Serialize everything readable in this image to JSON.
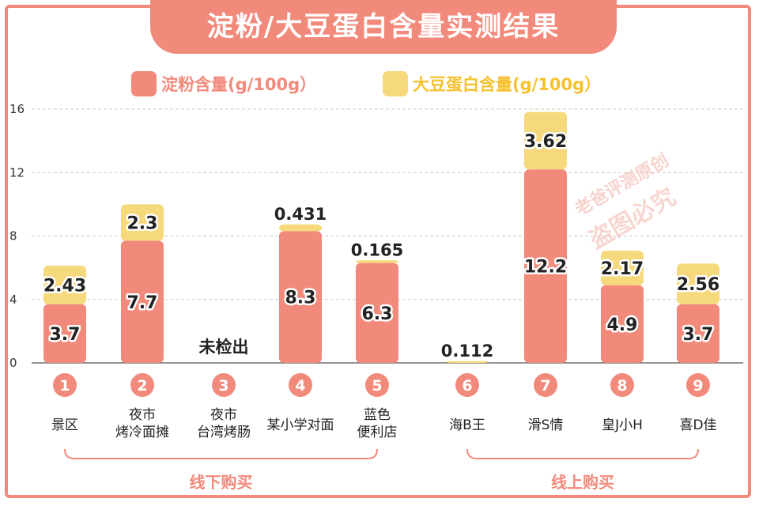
{
  "title": "淀粉/大豆蛋白含量实测结果",
  "colors": {
    "starch": "#f28a7c",
    "protein": "#f6d97c",
    "accent": "#f28a7c",
    "grid": "#cccccc"
  },
  "legend": [
    {
      "name": "淀粉含量(g/100g）",
      "color": "#f28a7c",
      "text_color": "#f28a7c"
    },
    {
      "name": "大豆蛋白含量(g/100g）",
      "color": "#f6d97c",
      "text_color": "#f5c12e"
    }
  ],
  "groups": [
    {
      "label": "线下购买",
      "range": [
        1,
        5
      ]
    },
    {
      "label": "线上购买",
      "range": [
        6,
        9
      ]
    }
  ],
  "watermark": [
    "老爸评测原创",
    "盗图必究"
  ],
  "chart_data": {
    "type": "bar",
    "stacked": true,
    "title": "淀粉/大豆蛋白含量实测结果",
    "ylim": [
      0,
      16
    ],
    "yticks": [
      0,
      4,
      8,
      12,
      16
    ],
    "grid": true,
    "legend_position": "top",
    "categories": [
      {
        "num": "1",
        "lines": [
          "景区"
        ]
      },
      {
        "num": "2",
        "lines": [
          "夜市",
          "烤冷面摊"
        ]
      },
      {
        "num": "3",
        "lines": [
          "夜市",
          "台湾烤肠"
        ]
      },
      {
        "num": "4",
        "lines": [
          "某小学对面"
        ]
      },
      {
        "num": "5",
        "lines": [
          "蓝色",
          "便利店"
        ]
      },
      {
        "num": "6",
        "lines": [
          "海B王"
        ]
      },
      {
        "num": "7",
        "lines": [
          "滑S情"
        ]
      },
      {
        "num": "8",
        "lines": [
          "皇J小H"
        ]
      },
      {
        "num": "9",
        "lines": [
          "喜D佳"
        ]
      }
    ],
    "series": [
      {
        "name": "淀粉含量(g/100g）",
        "values": [
          3.7,
          7.7,
          null,
          8.3,
          6.3,
          null,
          12.2,
          4.9,
          3.7
        ],
        "labels": [
          "3.7",
          "7.7",
          "",
          "8.3",
          "6.3",
          "",
          "12.2",
          "4.9",
          "3.7"
        ]
      },
      {
        "name": "大豆蛋白含量(g/100g）",
        "values": [
          2.43,
          2.3,
          null,
          0.431,
          0.165,
          0.112,
          3.62,
          2.17,
          2.56
        ],
        "labels": [
          "2.43",
          "2.3",
          "",
          "0.431",
          "0.165",
          "0.112",
          "3.62",
          "2.17",
          "2.56"
        ]
      }
    ],
    "annotations": [
      {
        "category": 3,
        "text": "未检出"
      }
    ]
  }
}
